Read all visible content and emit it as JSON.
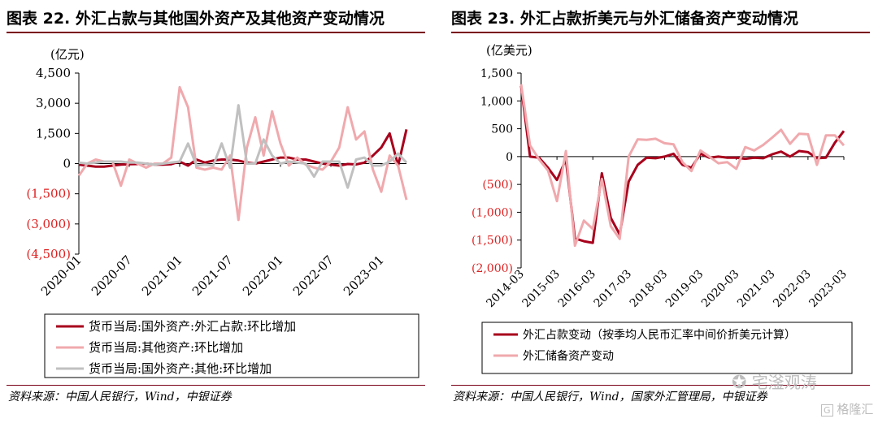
{
  "watermarks": {
    "wechat": "宅滏观涛",
    "logo": "格隆汇"
  },
  "colors": {
    "dark_red": "#a8001c",
    "pink": "#f0a9ad",
    "gray": "#c0c0c0",
    "neg_label": "#e02020",
    "rule": "#7a0019"
  },
  "charts": [
    {
      "title": "图表 22. 外汇占款与其他国外资产及其他资产变动情况",
      "source": "资料来源：中国人民银行，Wind，中银证券",
      "chart_data": {
        "type": "line",
        "unit_label": "(亿元)",
        "ylim": [
          -4500,
          4500
        ],
        "yticks": [
          4500,
          3000,
          1500,
          0,
          -1500,
          -3000,
          -4500
        ],
        "ytick_labels": [
          "4,500",
          "3,000",
          "1,500",
          "0",
          "(1,500)",
          "(3,000)",
          "(4,500)"
        ],
        "x_tick_labels": [
          "2020-01",
          "2020-07",
          "2021-01",
          "2021-07",
          "2022-01",
          "2022-07",
          "2023-01"
        ],
        "x_tick_index": [
          0,
          6,
          12,
          18,
          24,
          30,
          36
        ],
        "n_points": 40,
        "legend_position": "bottom",
        "series": [
          {
            "name": "货币当局:国外资产:外汇占款:环比增加",
            "color": "#a8001c",
            "values": [
              -50,
              -100,
              -150,
              -150,
              -100,
              -50,
              -30,
              -20,
              0,
              -50,
              -50,
              -30,
              100,
              -100,
              200,
              50,
              150,
              200,
              200,
              150,
              50,
              0,
              100,
              200,
              300,
              300,
              200,
              200,
              100,
              0,
              -50,
              -100,
              -20,
              -40,
              50,
              400,
              800,
              1500,
              -100,
              1700
            ]
          },
          {
            "name": "货币当局:其他资产:环比增加",
            "color": "#f0a9ad",
            "values": [
              -600,
              0,
              200,
              100,
              100,
              -1100,
              200,
              0,
              -200,
              0,
              0,
              300,
              3800,
              2800,
              -200,
              -300,
              -200,
              -300,
              400,
              -2800,
              800,
              2300,
              400,
              2600,
              1000,
              -100,
              300,
              -50,
              -200,
              -300,
              100,
              800,
              2800,
              1200,
              1600,
              -300,
              -1400,
              400,
              -100,
              -1800
            ]
          },
          {
            "name": "货币当局:国外资产:其他:环比增加",
            "color": "#c0c0c0",
            "values": [
              50,
              0,
              50,
              100,
              100,
              100,
              50,
              50,
              0,
              -50,
              0,
              50,
              100,
              1000,
              -100,
              -50,
              -100,
              1000,
              -200,
              2900,
              0,
              0,
              1200,
              400,
              0,
              100,
              50,
              0,
              -650,
              100,
              100,
              100,
              -1200,
              200,
              300,
              -100,
              -100,
              100,
              500,
              50
            ]
          }
        ]
      }
    },
    {
      "title": "图表 23. 外汇占款折美元与外汇储备资产变动情况",
      "source": "资料来源：中国人民银行，Wind，国家外汇管理局，中银证券",
      "chart_data": {
        "type": "line",
        "unit_label": "(亿美元)",
        "ylim": [
          -2000,
          1500
        ],
        "yticks": [
          1500,
          1000,
          500,
          0,
          -500,
          -1000,
          -1500,
          -2000
        ],
        "ytick_labels": [
          "1,500",
          "1,000",
          "500",
          "0",
          "(500)",
          "(1,000)",
          "(1,500)",
          "(2,000)"
        ],
        "x_tick_labels": [
          "2014-03",
          "2015-03",
          "2016-03",
          "2017-03",
          "2018-03",
          "2019-03",
          "2020-03",
          "2021-03",
          "2022-03",
          "2023-03"
        ],
        "x_tick_index": [
          0,
          4,
          8,
          12,
          16,
          20,
          24,
          28,
          32,
          36
        ],
        "n_points": 37,
        "legend_position": "bottom",
        "series": [
          {
            "name": "外汇占款变动（按季均人民币汇率中间价折美元计算）",
            "color": "#a8001c",
            "values": [
              1270,
              0,
              -20,
              -200,
              -420,
              -50,
              -1470,
              -1520,
              -1550,
              -300,
              -1100,
              -1400,
              -450,
              -150,
              -20,
              -30,
              0,
              50,
              -150,
              -200,
              50,
              -20,
              0,
              -20,
              -20,
              -40,
              -20,
              -30,
              40,
              90,
              0,
              100,
              80,
              -30,
              -20,
              250,
              460
            ]
          },
          {
            "name": "外汇储备资产变动",
            "color": "#f0a9ad",
            "values": [
              1300,
              200,
              -50,
              -250,
              -800,
              100,
              -1600,
              -1150,
              -1300,
              -400,
              -1250,
              -1480,
              0,
              310,
              300,
              320,
              240,
              220,
              -100,
              -260,
              110,
              0,
              -120,
              -100,
              -220,
              170,
              110,
              210,
              340,
              480,
              230,
              410,
              400,
              -150,
              380,
              380,
              200
            ]
          }
        ]
      }
    }
  ]
}
